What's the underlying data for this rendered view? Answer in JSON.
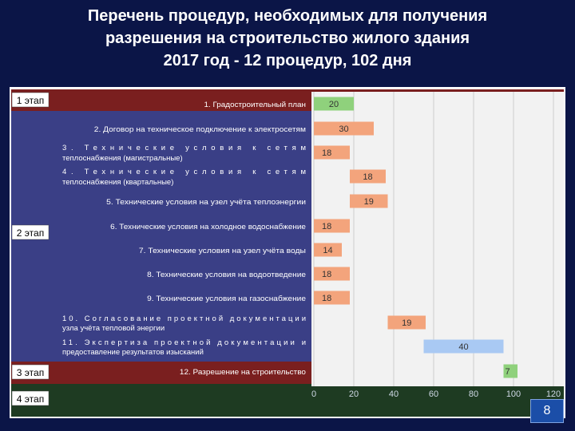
{
  "title_lines": [
    "Перечень процедур, необходимых для получения",
    "разрешения на строительство жилого здания",
    "2017 год - 12 процедур, 102 дня"
  ],
  "page_number": "8",
  "colors": {
    "background": "#0b1547",
    "stage_dark_red": "#7a1f1f",
    "stage_blue_band": "#3a3f86",
    "stage_dark_green": "#1e3b22",
    "plot_bg": "#f2f2f2",
    "bar_green": "#8fd17c",
    "bar_orange": "#f3a47c",
    "bar_blue": "#a9c9f3"
  },
  "chart_data": {
    "type": "bar",
    "orientation": "horizontal-gantt",
    "stages": [
      {
        "label": "1 этап",
        "tasks": [
          0
        ]
      },
      {
        "label": "2 этап",
        "tasks": [
          1,
          2,
          3,
          4,
          5,
          6,
          7,
          8,
          9,
          10
        ]
      },
      {
        "label": "3 этап",
        "tasks": [
          11
        ]
      },
      {
        "label": "4 этап",
        "tasks": []
      }
    ],
    "tasks": [
      {
        "name": "1. Градостроительный план",
        "start": 0,
        "duration": 20,
        "label": "20",
        "color": "green"
      },
      {
        "name": "2. Договор на техническое подключение к электросетям",
        "start": 0,
        "duration": 30,
        "label": "30",
        "color": "orange"
      },
      {
        "name": "3. Технические условия к сетям теплоснабжения (магистральные)",
        "start": 0,
        "duration": 18,
        "label": "18",
        "color": "orange"
      },
      {
        "name": "4. Технические условия к сетям теплоснабжения (квартальные)",
        "start": 18,
        "duration": 18,
        "label": "18",
        "color": "orange"
      },
      {
        "name": "5. Технические условия на узел учёта теплоэнергии",
        "start": 18,
        "duration": 19,
        "label": "19",
        "color": "orange"
      },
      {
        "name": "6. Технические условия на холодное водоснабжение",
        "start": 0,
        "duration": 18,
        "label": "18",
        "color": "orange"
      },
      {
        "name": "7. Технические условия на узел учёта воды",
        "start": 0,
        "duration": 14,
        "label": "14",
        "color": "orange"
      },
      {
        "name": "8. Технические условия на водоотведение",
        "start": 0,
        "duration": 18,
        "label": "18",
        "color": "orange"
      },
      {
        "name": "9. Технические условия на газоснабжение",
        "start": 0,
        "duration": 18,
        "label": "18",
        "color": "orange"
      },
      {
        "name": "10. Согласование проектной документации узла учёта тепловой энергии",
        "start": 37,
        "duration": 19,
        "label": "19",
        "color": "orange"
      },
      {
        "name": "11. Экспертиза проектной документации и предоставление результатов изысканий",
        "start": 55,
        "duration": 40,
        "label": "40",
        "color": "blue"
      },
      {
        "name": "12. Разрешение на строительство",
        "start": 95,
        "duration": 7,
        "label": "7",
        "color": "green"
      }
    ],
    "x_ticks": [
      0,
      20,
      40,
      60,
      80,
      100,
      120
    ],
    "xlim": [
      0,
      120
    ],
    "grid": true,
    "xlabel": "",
    "ylabel": ""
  }
}
